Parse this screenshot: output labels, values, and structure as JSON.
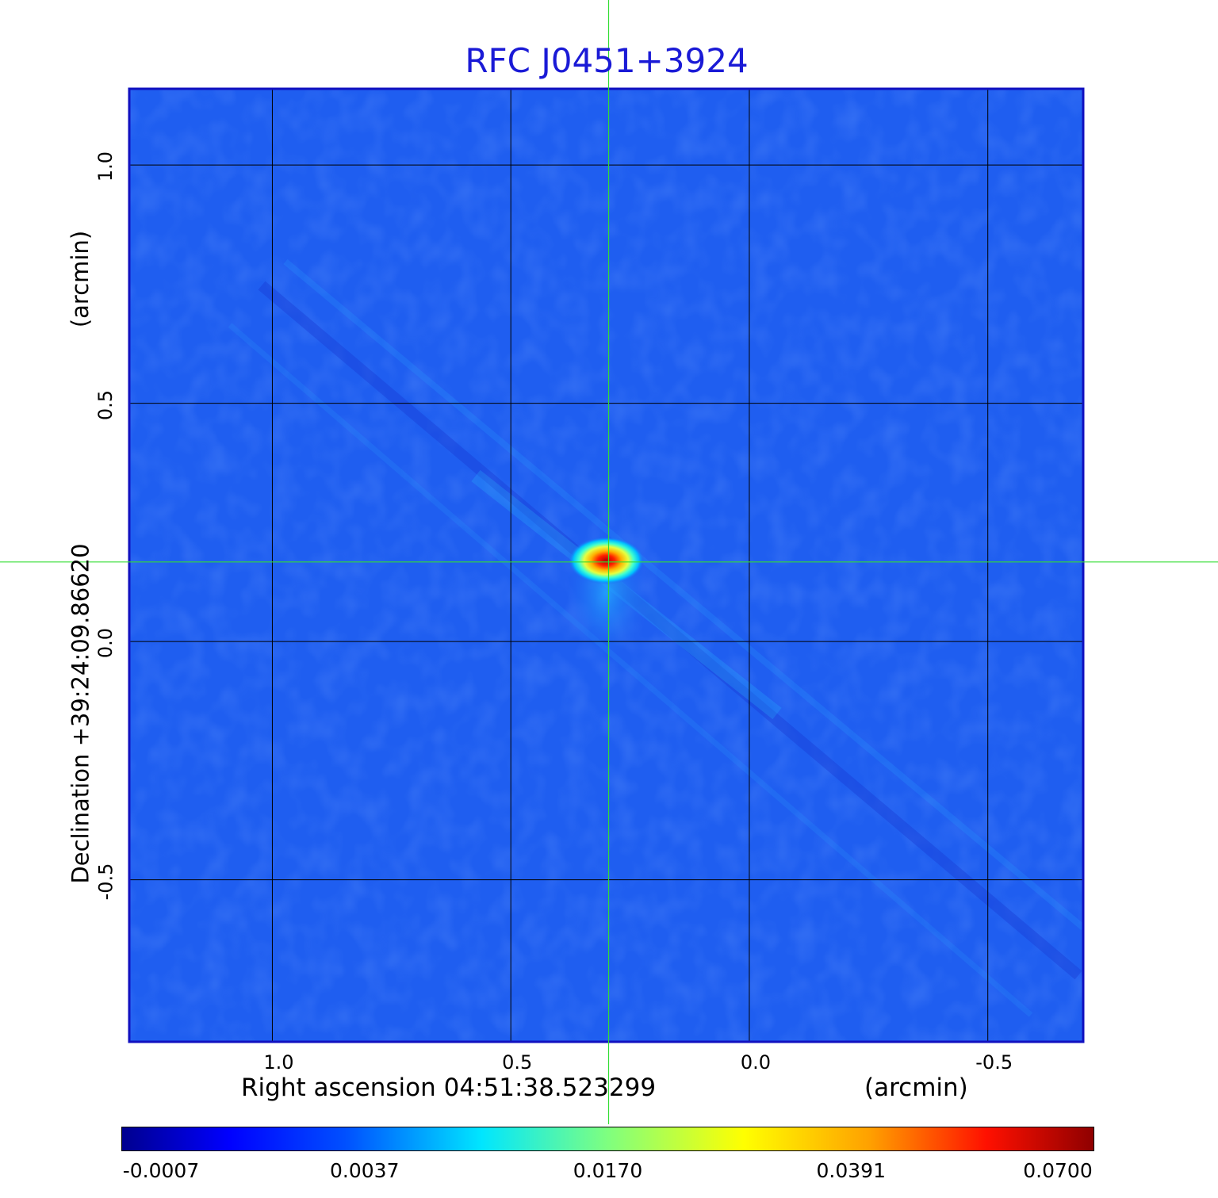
{
  "chart_data": {
    "type": "heatmap",
    "title": "RFC J0451+3924",
    "xlabel": "Right ascension  04:51:38.523299",
    "xlabel_unit": "(arcmin)",
    "ylabel": "Declination  +39:24:09.86620",
    "ylabel_unit": "(arcmin)",
    "x_ticks": [
      "1.0",
      "0.5",
      "0.0",
      "-0.5"
    ],
    "x_tick_values": [
      1.0,
      0.5,
      0.0,
      -0.5
    ],
    "y_ticks": [
      "1.0",
      "0.5",
      "0.0",
      "-0.5"
    ],
    "y_tick_values": [
      1.0,
      0.5,
      0.0,
      -0.5
    ],
    "xlim": [
      1.3,
      -0.7
    ],
    "ylim": [
      -0.84,
      1.16
    ],
    "grid": true,
    "source_peak": {
      "x": 0.3,
      "y": 0.17
    },
    "crosshair": {
      "x": 0.295,
      "y": 0.167
    },
    "colorbar": {
      "ticks": [
        "-0.0007",
        "0.0037",
        "0.0170",
        "0.0391",
        "0.0700"
      ],
      "tick_values": [
        -0.0007,
        0.0037,
        0.017,
        0.0391,
        0.07
      ],
      "colormap": "jet",
      "orientation": "horizontal"
    },
    "colors": {
      "title": "#1a1ad6",
      "crosshair": "#33dd33",
      "frame": "#1010c0",
      "grid": "#000000"
    }
  }
}
